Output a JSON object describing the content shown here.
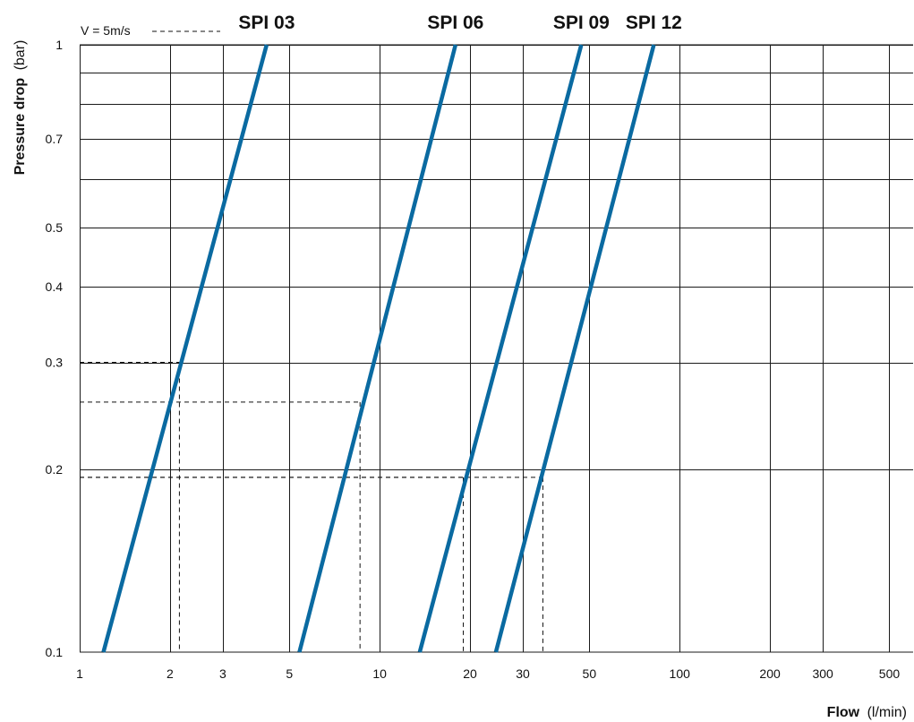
{
  "chart_data": {
    "type": "line",
    "x_scale": "log",
    "y_scale": "log",
    "xlim": [
      1,
      600
    ],
    "ylim": [
      0.1,
      1
    ],
    "grid": true,
    "xlabel": "Flow",
    "xunit": "(l/min)",
    "ylabel": "Pressure drop",
    "yunit": "(bar)",
    "x_ticks": [
      {
        "value": 1,
        "label": "1"
      },
      {
        "value": 2,
        "label": "2"
      },
      {
        "value": 3,
        "label": "3"
      },
      {
        "value": 5,
        "label": "5"
      },
      {
        "value": 10,
        "label": "10"
      },
      {
        "value": 20,
        "label": "20"
      },
      {
        "value": 30,
        "label": "30"
      },
      {
        "value": 50,
        "label": "50"
      },
      {
        "value": 100,
        "label": "100"
      },
      {
        "value": 200,
        "label": "200"
      },
      {
        "value": 300,
        "label": "300"
      },
      {
        "value": 500,
        "label": "500"
      }
    ],
    "x_grid_values": [
      1,
      2,
      3,
      5,
      10,
      20,
      30,
      50,
      100,
      200,
      300,
      500
    ],
    "y_ticks": [
      {
        "value": 0.1,
        "label": "0.1"
      },
      {
        "value": 0.2,
        "label": "0.2"
      },
      {
        "value": 0.3,
        "label": "0.3"
      },
      {
        "value": 0.4,
        "label": "0.4"
      },
      {
        "value": 0.5,
        "label": "0.5"
      },
      {
        "value": 0.7,
        "label": "0.7"
      },
      {
        "value": 1,
        "label": "1"
      }
    ],
    "y_grid_values": [
      0.2,
      0.3,
      0.4,
      0.5,
      0.6,
      0.7,
      0.8,
      0.9,
      1
    ],
    "series": [
      {
        "name": "SPI 03",
        "points": [
          [
            1.2,
            0.1
          ],
          [
            4.2,
            1
          ]
        ]
      },
      {
        "name": "SPI 06",
        "points": [
          [
            5.4,
            0.1
          ],
          [
            17.9,
            1
          ]
        ]
      },
      {
        "name": "SPI 09",
        "points": [
          [
            13.6,
            0.1
          ],
          [
            47,
            1
          ]
        ]
      },
      {
        "name": "SPI 12",
        "points": [
          [
            24.4,
            0.1
          ],
          [
            82,
            1
          ]
        ]
      }
    ],
    "reference": {
      "label": "V = 5m/s",
      "points": [
        {
          "series": "SPI 03",
          "flow": 2.15,
          "pressure": 0.3
        },
        {
          "series": "SPI 06",
          "flow": 8.6,
          "pressure": 0.258
        },
        {
          "series": "SPI 09",
          "flow": 19,
          "pressure": 0.194
        },
        {
          "series": "SPI 12",
          "flow": 35,
          "pressure": 0.194
        }
      ]
    },
    "colors": {
      "series": "#0a6aa1",
      "grid": "#1a1a1a",
      "reference": "#111111"
    }
  }
}
